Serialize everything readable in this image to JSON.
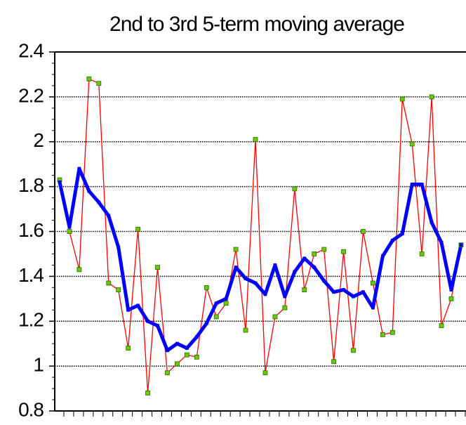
{
  "chart_data": {
    "type": "line",
    "title": "2nd to 3rd 5-term moving average",
    "ylim": [
      0.8,
      2.4
    ],
    "yticks": [
      0.8,
      1,
      1.2,
      1.4,
      1.6,
      1.8,
      2,
      2.2,
      2.4
    ],
    "grid": true,
    "series": [
      {
        "color": "#ff0000",
        "marker_color": "#66cc00",
        "values": [
          1.83,
          1.6,
          1.43,
          2.28,
          2.26,
          1.37,
          1.34,
          1.08,
          1.61,
          0.88,
          1.44,
          0.97,
          1.01,
          1.05,
          1.04,
          1.35,
          1.22,
          1.28,
          1.52,
          1.16,
          2.01,
          0.97,
          1.22,
          1.26,
          1.79,
          1.34,
          1.5,
          1.52,
          1.02,
          1.51,
          1.07,
          1.6,
          1.37,
          1.14,
          1.15,
          2.19,
          1.99,
          1.5,
          2.2,
          1.18,
          1.3,
          1.54
        ]
      },
      {
        "color": "#0000ff",
        "values": [
          1.82,
          1.62,
          1.88,
          1.78,
          1.73,
          1.67,
          1.53,
          1.25,
          1.27,
          1.2,
          1.18,
          1.07,
          1.1,
          1.08,
          1.13,
          1.19,
          1.28,
          1.3,
          1.44,
          1.39,
          1.37,
          1.32,
          1.45,
          1.31,
          1.42,
          1.48,
          1.44,
          1.38,
          1.33,
          1.34,
          1.31,
          1.33,
          1.26,
          1.49,
          1.56,
          1.59,
          1.81,
          1.81,
          1.64,
          1.55,
          1.34,
          1.54
        ]
      }
    ]
  }
}
